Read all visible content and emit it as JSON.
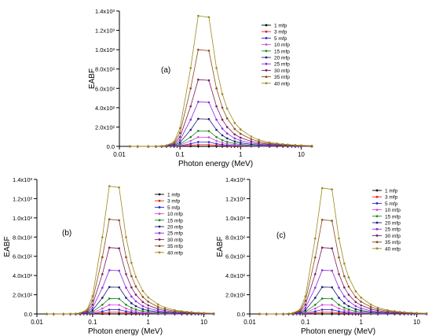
{
  "figure": {
    "x_axis_title": "Photon energy (MeV)",
    "y_axis_title": "EABF"
  },
  "legend_labels": [
    "1 mfp",
    "3 mfp",
    "5 mfp",
    "10 mfp",
    "15 mfp",
    "20 mfp",
    "25 mfp",
    "30 mfp",
    "35 mfp",
    "40 mfp"
  ],
  "series_colors": [
    "#000000",
    "#e8201f",
    "#2a22d6",
    "#d24ad8",
    "#1a8a1a",
    "#1c1c7a",
    "#8a2be2",
    "#7a1a5a",
    "#8a4a1a",
    "#9a8a1a"
  ],
  "chart_data": [
    {
      "type": "line",
      "panel_label": "(a)",
      "x_scale": "log",
      "xlim": [
        0.01,
        15
      ],
      "x_ticks": [
        "0.01",
        "0.1",
        "1",
        "10"
      ],
      "ylim": [
        0,
        1400
      ],
      "y_ticks": [
        "0.0",
        "2.0x10²",
        "4.0x10²",
        "6.0x10²",
        "8.0x10²",
        "1.0x10³",
        "1.2x10³",
        "1.4x10³"
      ],
      "x": [
        0.015,
        0.02,
        0.03,
        0.04,
        0.05,
        0.06,
        0.08,
        0.1,
        0.15,
        0.2,
        0.3,
        0.4,
        0.5,
        0.6,
        0.8,
        1,
        1.5,
        2,
        3,
        4,
        5,
        6,
        8,
        10,
        15
      ],
      "peak_values": [
        2,
        18,
        45,
        95,
        160,
        285,
        460,
        690,
        1000,
        1350
      ]
    },
    {
      "type": "line",
      "panel_label": "(b)",
      "x_scale": "log",
      "xlim": [
        0.01,
        15
      ],
      "x_ticks": [
        "0.01",
        "0.1",
        "1",
        "10"
      ],
      "ylim": [
        0,
        1400
      ],
      "y_ticks": [
        "0.0",
        "2.0x10²",
        "4.0x10²",
        "6.0x10²",
        "8.0x10²",
        "1.0x10³",
        "1.2x10³",
        "1.4x10³"
      ],
      "x": [
        0.015,
        0.02,
        0.03,
        0.04,
        0.05,
        0.06,
        0.08,
        0.1,
        0.15,
        0.2,
        0.3,
        0.4,
        0.5,
        0.6,
        0.8,
        1,
        1.5,
        2,
        3,
        4,
        5,
        6,
        8,
        10,
        15
      ],
      "peak_values": [
        2,
        18,
        45,
        95,
        160,
        280,
        455,
        690,
        985,
        1330
      ]
    },
    {
      "type": "line",
      "panel_label": "(c)",
      "x_scale": "log",
      "xlim": [
        0.01,
        15
      ],
      "x_ticks": [
        "0.01",
        "0.1",
        "1",
        "10"
      ],
      "ylim": [
        0,
        1400
      ],
      "y_ticks": [
        "0.0",
        "2.0x10²",
        "4.0x10²",
        "6.0x10²",
        "8.0x10²",
        "1.0x10³",
        "1.2x10³",
        "1.4x10³"
      ],
      "x": [
        0.015,
        0.02,
        0.03,
        0.04,
        0.05,
        0.06,
        0.08,
        0.1,
        0.15,
        0.2,
        0.3,
        0.4,
        0.5,
        0.6,
        0.8,
        1,
        1.5,
        2,
        3,
        4,
        5,
        6,
        8,
        10,
        15
      ],
      "peak_values": [
        2,
        18,
        45,
        95,
        160,
        280,
        455,
        690,
        980,
        1310
      ]
    }
  ]
}
